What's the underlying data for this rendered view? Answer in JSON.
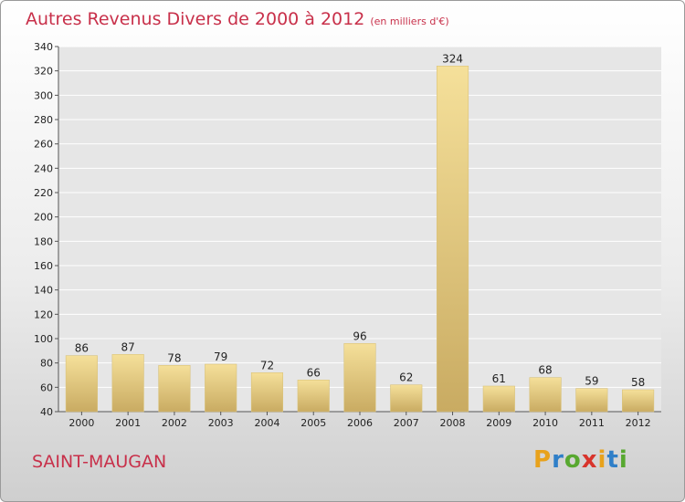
{
  "header": {
    "title": "Autres Revenus Divers de 2000 à 2012",
    "unit": "(en milliers d'€)"
  },
  "commune": "SAINT-MAUGAN",
  "logo": {
    "letters": [
      "P",
      "r",
      "o",
      "x",
      "i",
      "t",
      "i"
    ],
    "colors": [
      "#e8a21c",
      "#2f7fc8",
      "#58a830",
      "#d8342c",
      "#e8a21c",
      "#2f7fc8",
      "#58a830"
    ]
  },
  "colors": {
    "title": "#c8304a",
    "bar_light": "#f5e09a",
    "bar_dark": "#c9ab62",
    "grid": "#ffffff",
    "axis": "#555555"
  },
  "chart_data": {
    "type": "bar",
    "categories": [
      "2000",
      "2001",
      "2002",
      "2003",
      "2004",
      "2005",
      "2006",
      "2007",
      "2008",
      "2009",
      "2010",
      "2011",
      "2012"
    ],
    "values": [
      86,
      87,
      78,
      79,
      72,
      66,
      96,
      62,
      324,
      61,
      68,
      59,
      58
    ],
    "ylim": [
      40,
      340
    ],
    "yticks": [
      40,
      60,
      80,
      100,
      120,
      140,
      160,
      180,
      200,
      220,
      240,
      260,
      280,
      300,
      320,
      340
    ],
    "grid": true
  }
}
